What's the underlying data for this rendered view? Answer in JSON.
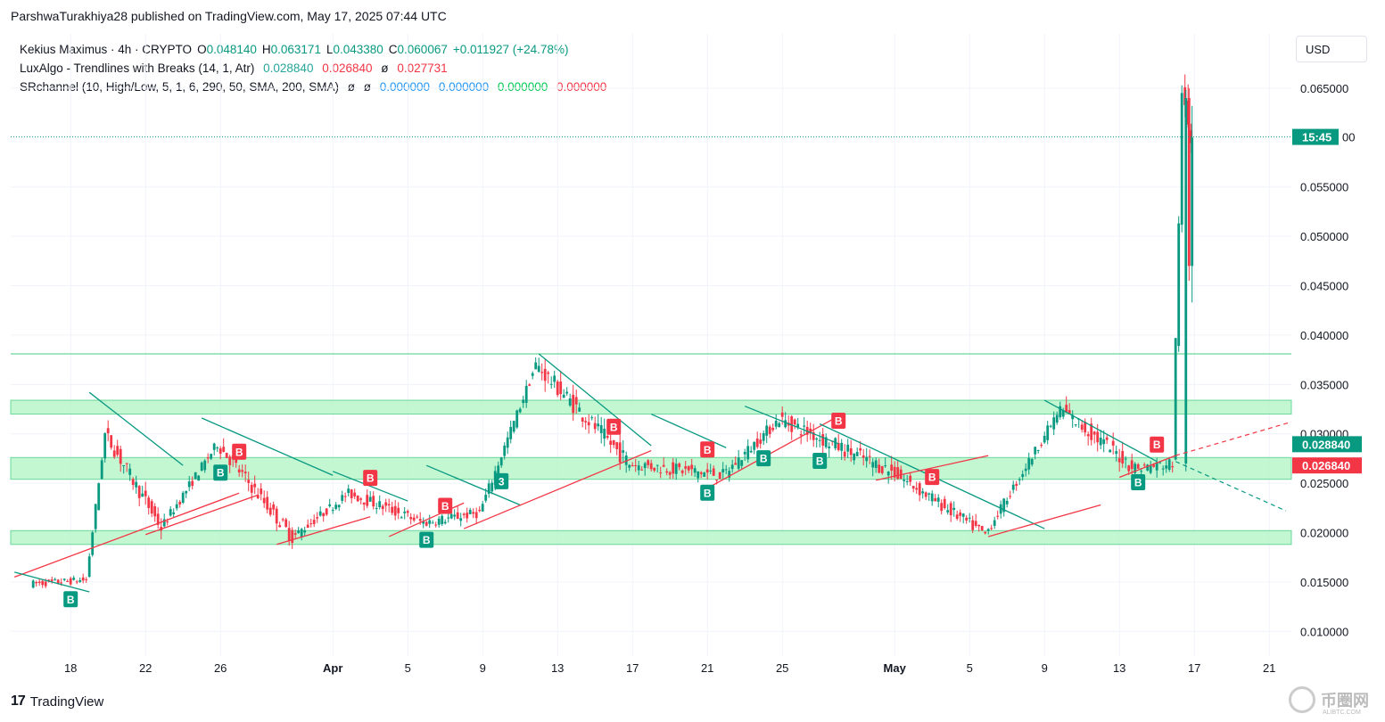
{
  "header": {
    "publish_line": "ParshwaTurakhiya28 published on TradingView.com, May 17, 2025 07:44 UTC"
  },
  "legend": {
    "symbol": "Kekius Maximus · 4h · CRYPTO",
    "open_label": "O",
    "open": "0.048140",
    "high_label": "H",
    "high": "0.063171",
    "low_label": "L",
    "low": "0.043380",
    "close_label": "C",
    "close": "0.060067",
    "change": "+0.011927 (+24.78%)",
    "indicator1_name": "LuxAlgo - Trendlines with Breaks (14, 1, Atr)",
    "indicator1_v1": "0.028840",
    "indicator1_v2": "0.026840",
    "indicator1_v3": "ø",
    "indicator1_v4": "0.027731",
    "indicator2_name": "SRchannel (10, High/Low, 5, 1, 6, 290, 50, SMA, 200, SMA)",
    "indicator2_v1": "ø",
    "indicator2_v2": "ø",
    "indicator2_v3": "0.000000",
    "indicator2_v4": "0.000000",
    "indicator2_v5": "0.000000",
    "indicator2_v6": "0.000000"
  },
  "currency_button": "USD",
  "footer": {
    "brand": "TradingView",
    "brand_mark": "17"
  },
  "watermark": {
    "text": "币圈网",
    "sub": "ALIBTC.COM"
  },
  "colors": {
    "up": "#089981",
    "down": "#f23645",
    "zone_fill": "#b9f6ca",
    "zone_stroke": "#69d79a",
    "trend_up": "#f23645",
    "trend_down": "#089981",
    "grid": "#f0f3fa"
  },
  "chart_data": {
    "type": "candlestick",
    "ylim": [
      0.0075,
      0.0705
    ],
    "y_ticks": [
      "0.065000",
      "0.055000",
      "0.050000",
      "0.045000",
      "0.040000",
      "0.035000",
      "0.030000",
      "0.025000",
      "0.020000",
      "0.015000",
      "0.010000"
    ],
    "x_ticks": [
      "18",
      "22",
      "26",
      "Apr",
      "5",
      "9",
      "13",
      "17",
      "21",
      "25",
      "May",
      "5",
      "9",
      "13",
      "17",
      "21"
    ],
    "price_labels": {
      "countdown": "15:45",
      "countdown_suffix": "00",
      "upper_break": "0.028840",
      "lower_break": "0.026840"
    },
    "sr_zones": [
      [
        0.032,
        0.0334
      ],
      [
        0.0254,
        0.0276
      ],
      [
        0.0188,
        0.0202
      ]
    ],
    "resistance_line": 0.0381,
    "last_price": 0.060067,
    "key_points": [
      {
        "date": "Mar 16",
        "price": 0.0148
      },
      {
        "date": "Mar 19",
        "price": 0.0152
      },
      {
        "date": "Mar 20",
        "price": 0.03
      },
      {
        "date": "Mar 23",
        "price": 0.0205
      },
      {
        "date": "Mar 26",
        "price": 0.029
      },
      {
        "date": "Mar 30",
        "price": 0.0195
      },
      {
        "date": "Apr 2",
        "price": 0.024
      },
      {
        "date": "Apr 6",
        "price": 0.021
      },
      {
        "date": "Apr 9",
        "price": 0.022
      },
      {
        "date": "Apr 12",
        "price": 0.037
      },
      {
        "date": "Apr 17",
        "price": 0.027
      },
      {
        "date": "Apr 22",
        "price": 0.0258
      },
      {
        "date": "Apr 25",
        "price": 0.0315
      },
      {
        "date": "May 1",
        "price": 0.0262
      },
      {
        "date": "May 6",
        "price": 0.0198
      },
      {
        "date": "May 10",
        "price": 0.0325
      },
      {
        "date": "May 14",
        "price": 0.0265
      },
      {
        "date": "May 16",
        "price": 0.027
      },
      {
        "date": "May 16 12h",
        "price": 0.064
      },
      {
        "date": "May 17",
        "price": 0.0601
      }
    ],
    "signals": [
      {
        "label": "B",
        "type": "buy",
        "date": "Mar 18"
      },
      {
        "label": "B",
        "type": "buy",
        "date": "Mar 26"
      },
      {
        "label": "B",
        "type": "sell",
        "date": "Mar 27"
      },
      {
        "label": "B",
        "type": "sell",
        "date": "Apr 3"
      },
      {
        "label": "B",
        "type": "buy",
        "date": "Apr 6"
      },
      {
        "label": "B",
        "type": "sell",
        "date": "Apr 7"
      },
      {
        "label": "3",
        "type": "buy",
        "date": "Apr 10"
      },
      {
        "label": "B",
        "type": "sell",
        "date": "Apr 16"
      },
      {
        "label": "B",
        "type": "sell",
        "date": "Apr 21"
      },
      {
        "label": "B",
        "type": "buy",
        "date": "Apr 21"
      },
      {
        "label": "B",
        "type": "buy",
        "date": "Apr 24"
      },
      {
        "label": "B",
        "type": "buy",
        "date": "Apr 27"
      },
      {
        "label": "B",
        "type": "sell",
        "date": "Apr 28"
      },
      {
        "label": "B",
        "type": "sell",
        "date": "May 3"
      },
      {
        "label": "B",
        "type": "buy",
        "date": "May 14"
      },
      {
        "label": "B",
        "type": "sell",
        "date": "May 15"
      }
    ]
  }
}
